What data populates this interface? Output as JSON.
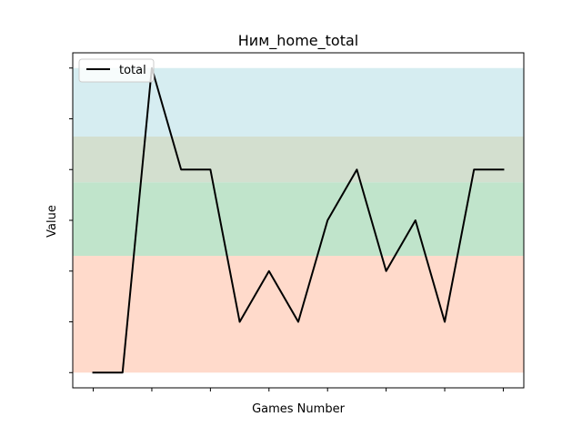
{
  "chart_data": {
    "type": "line",
    "title": "Ним_home_total",
    "xlabel": "Games Number",
    "ylabel": "Value",
    "x": [
      0,
      1,
      2,
      3,
      4,
      5,
      6,
      7,
      8,
      9,
      10,
      11,
      12,
      13,
      14
    ],
    "x_ticks": [
      0,
      2,
      4,
      6,
      8,
      10,
      12,
      14
    ],
    "x_tick_labels_shown": false,
    "y_ticks": [
      0,
      1,
      2,
      3,
      4,
      5,
      6
    ],
    "y_tick_labels_shown": false,
    "xlim": [
      -0.7,
      14.7
    ],
    "ylim": [
      -0.3,
      6.3
    ],
    "grid": false,
    "legend_position": "top-left",
    "series": [
      {
        "name": "total",
        "color": "#000000",
        "values": [
          0,
          0,
          6,
          4,
          4,
          1,
          2,
          1,
          3,
          4,
          2,
          3,
          1,
          4,
          4
        ]
      }
    ],
    "bands": [
      {
        "from": 0,
        "to": 2.3,
        "color": "#ffdacb"
      },
      {
        "from": 2.3,
        "to": 3.75,
        "color": "#c0e4cb"
      },
      {
        "from": 3.75,
        "to": 4.65,
        "color": "#d3dfcf"
      },
      {
        "from": 4.65,
        "to": 6,
        "color": "#d6edf1"
      }
    ]
  }
}
